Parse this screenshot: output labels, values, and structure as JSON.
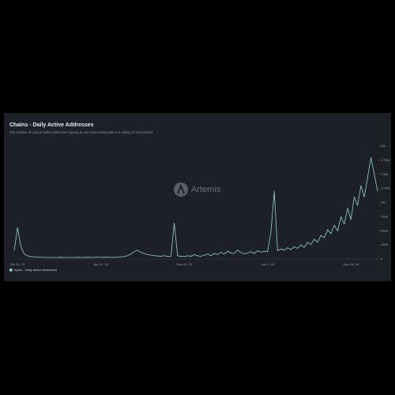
{
  "chart_data": {
    "type": "line",
    "title": "Chains - Daily Active Addresses",
    "subtitle": "The number of unique wallet addresses signing an on-chain transaction in a rolling 24 hour period.",
    "watermark": "Artemis",
    "categories": [
      null,
      "Oct 01, 22",
      null,
      null,
      null,
      null,
      null,
      null,
      null,
      null,
      null,
      null,
      null,
      null,
      null,
      null,
      null,
      null,
      null,
      null,
      null,
      null,
      null,
      null,
      null,
      null,
      "Apr 01, 23",
      null,
      null,
      null,
      null,
      null,
      null,
      null,
      null,
      null,
      null,
      null,
      null,
      null,
      null,
      null,
      null,
      null,
      null,
      null,
      null,
      null,
      null,
      null,
      null,
      "Nov 10, 23",
      null,
      null,
      null,
      null,
      null,
      null,
      null,
      null,
      null,
      null,
      null,
      null,
      null,
      null,
      null,
      null,
      null,
      null,
      null,
      null,
      null,
      null,
      null,
      null,
      "Jun 2, 24",
      null,
      null,
      null,
      null,
      null,
      null,
      null,
      null,
      null,
      null,
      null,
      null,
      null,
      null,
      null,
      null,
      null,
      null,
      null,
      null,
      null,
      null,
      null,
      null,
      "Dec 24, 24",
      null,
      null,
      null,
      null,
      null,
      null,
      null,
      null
    ],
    "series": [
      {
        "name": "Aptos - Daily Active Addresses",
        "color": "#8ad6c3",
        "values": [
          150000,
          560000,
          220000,
          90000,
          60000,
          45000,
          40000,
          35000,
          35000,
          30000,
          30000,
          30000,
          28000,
          30000,
          32000,
          30000,
          28000,
          30000,
          30000,
          32000,
          30000,
          30000,
          32000,
          30000,
          30000,
          35000,
          30000,
          32000,
          35000,
          30000,
          32000,
          35000,
          40000,
          45000,
          60000,
          90000,
          130000,
          160000,
          120000,
          100000,
          80000,
          70000,
          60000,
          55000,
          50000,
          60000,
          50000,
          45000,
          640000,
          60000,
          50000,
          45000,
          60000,
          50000,
          80000,
          60000,
          50000,
          70000,
          90000,
          60000,
          100000,
          80000,
          120000,
          90000,
          140000,
          110000,
          100000,
          160000,
          120000,
          90000,
          110000,
          130000,
          100000,
          150000,
          120000,
          140000,
          130000,
          480000,
          1200000,
          150000,
          180000,
          160000,
          200000,
          170000,
          220000,
          190000,
          250000,
          210000,
          300000,
          260000,
          350000,
          300000,
          420000,
          380000,
          520000,
          450000,
          600000,
          500000,
          750000,
          620000,
          900000,
          700000,
          1100000,
          950000,
          1300000,
          1100000,
          1450000,
          1800000,
          1500000,
          1200000
        ]
      }
    ],
    "ylim": [
      0,
      2000000
    ],
    "yticks": [
      0,
      {
        "value": 250000,
        "label": "250K"
      },
      {
        "value": 500000,
        "label": "500K"
      },
      {
        "value": 750000,
        "label": "750K"
      },
      {
        "value": 1000000,
        "label": "1M"
      },
      {
        "value": 1250000,
        "label": "1.25M"
      },
      {
        "value": 1500000,
        "label": "1.5M"
      },
      {
        "value": 1750000,
        "label": "1.75M"
      },
      {
        "value": 2000000,
        "label": "2M"
      }
    ],
    "grid": false
  }
}
